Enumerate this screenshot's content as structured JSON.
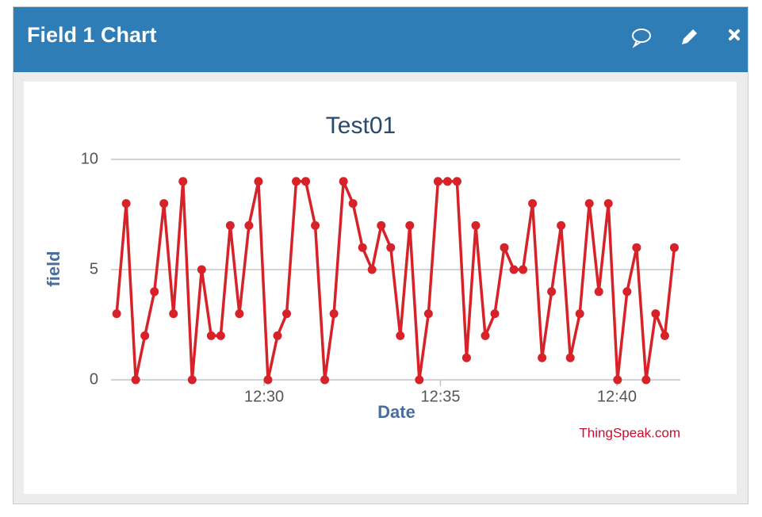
{
  "header": {
    "title": "Field 1 Chart"
  },
  "chart_data": {
    "type": "line",
    "title": "Test01",
    "x_label": "Date",
    "y_label": "field",
    "credit": "ThingSpeak.com",
    "x": [
      25.82,
      26.09,
      26.36,
      26.62,
      26.89,
      27.16,
      27.43,
      27.7,
      27.96,
      28.23,
      28.5,
      28.77,
      29.04,
      29.3,
      29.57,
      29.84,
      30.11,
      30.38,
      30.64,
      30.91,
      31.18,
      31.45,
      31.72,
      31.98,
      32.25,
      32.52,
      32.79,
      33.06,
      33.32,
      33.59,
      33.86,
      34.13,
      34.4,
      34.66,
      34.93,
      35.2,
      35.47,
      35.74,
      36.0,
      36.27,
      36.54,
      36.81,
      37.08,
      37.34,
      37.61,
      37.88,
      38.15,
      38.42,
      38.68,
      38.95,
      39.22,
      39.49,
      39.76,
      40.02,
      40.29,
      40.56,
      40.83,
      41.1,
      41.36,
      41.63
    ],
    "series": [
      {
        "name": "field",
        "color": "#d62228",
        "values": [
          3,
          8,
          0,
          2,
          4,
          8,
          3,
          9,
          0,
          5,
          2,
          2,
          7,
          3,
          7,
          9,
          0,
          2,
          3,
          9,
          9,
          7,
          0,
          3,
          9,
          8,
          6,
          5,
          7,
          6,
          2,
          7,
          0,
          3,
          9,
          9,
          9,
          1,
          7,
          2,
          3,
          6,
          5,
          5,
          8,
          1,
          4,
          7,
          1,
          3,
          8,
          4,
          8,
          0,
          4,
          6,
          0,
          3,
          2,
          6
        ]
      }
    ],
    "xlim": [
      25.66,
      41.8
    ],
    "xticks": [
      {
        "value": 30,
        "label": "12:30"
      },
      {
        "value": 35,
        "label": "12:35"
      },
      {
        "value": 40,
        "label": "12:40"
      }
    ],
    "ylim": [
      0,
      10
    ],
    "yticks": [
      0,
      5,
      10
    ],
    "grid": true
  }
}
